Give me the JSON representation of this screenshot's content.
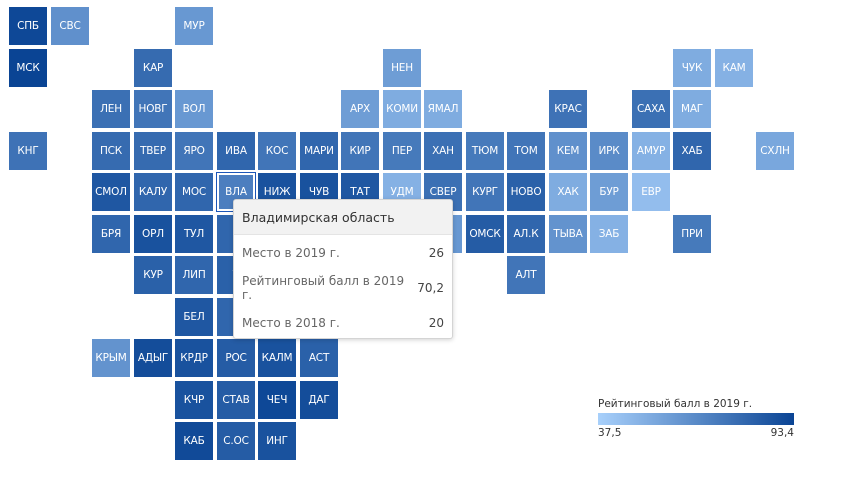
{
  "color_scale": {
    "min": 37.5,
    "max": 93.4,
    "min_color": "#a8d0fb",
    "max_color": "#0a4494"
  },
  "tiles": [
    {
      "label": "СПБ",
      "value": 92,
      "col": 0,
      "row": 0
    },
    {
      "label": "СВС",
      "value": 63,
      "col": 1,
      "row": 0
    },
    {
      "label": "МУР",
      "value": 60,
      "col": 4,
      "row": 0
    },
    {
      "label": "МСК",
      "value": 93.4,
      "col": 0,
      "row": 1
    },
    {
      "label": "КАР",
      "value": 78,
      "col": 3,
      "row": 1
    },
    {
      "label": "НЕН",
      "value": 58,
      "col": 9,
      "row": 1
    },
    {
      "label": "ЧУК",
      "value": 52,
      "col": 16,
      "row": 1
    },
    {
      "label": "КАМ",
      "value": 50,
      "col": 17,
      "row": 1
    },
    {
      "label": "ЛЕН",
      "value": 76,
      "col": 2,
      "row": 2
    },
    {
      "label": "НОВГ",
      "value": 74,
      "col": 3,
      "row": 2
    },
    {
      "label": "ВОЛ",
      "value": 60,
      "col": 4,
      "row": 2
    },
    {
      "label": "АРХ",
      "value": 58,
      "col": 8,
      "row": 2
    },
    {
      "label": "КОМИ",
      "value": 52,
      "col": 9,
      "row": 2
    },
    {
      "label": "ЯМАЛ",
      "value": 52,
      "col": 10,
      "row": 2
    },
    {
      "label": "КРАС",
      "value": 75,
      "col": 13,
      "row": 2
    },
    {
      "label": "САХА",
      "value": 76,
      "col": 15,
      "row": 2
    },
    {
      "label": "МАГ",
      "value": 52,
      "col": 16,
      "row": 2
    },
    {
      "label": "КНГ",
      "value": 75,
      "col": 0,
      "row": 3
    },
    {
      "label": "ПСК",
      "value": 78,
      "col": 2,
      "row": 3
    },
    {
      "label": "ТВЕР",
      "value": 78,
      "col": 3,
      "row": 3
    },
    {
      "label": "ЯРО",
      "value": 74,
      "col": 4,
      "row": 3
    },
    {
      "label": "ИВА",
      "value": 80,
      "col": 5,
      "row": 3
    },
    {
      "label": "КОС",
      "value": 74,
      "col": 6,
      "row": 3
    },
    {
      "label": "МАРИ",
      "value": 80,
      "col": 7,
      "row": 3
    },
    {
      "label": "КИР",
      "value": 74,
      "col": 8,
      "row": 3
    },
    {
      "label": "ПЕР",
      "value": 72,
      "col": 9,
      "row": 3
    },
    {
      "label": "ХАН",
      "value": 76,
      "col": 10,
      "row": 3
    },
    {
      "label": "ТЮМ",
      "value": 72,
      "col": 11,
      "row": 3
    },
    {
      "label": "ТОМ",
      "value": 74,
      "col": 12,
      "row": 3
    },
    {
      "label": "КЕМ",
      "value": 63,
      "col": 13,
      "row": 3
    },
    {
      "label": "ИРК",
      "value": 65,
      "col": 14,
      "row": 3
    },
    {
      "label": "АМУР",
      "value": 50,
      "col": 15,
      "row": 3
    },
    {
      "label": "ХАБ",
      "value": 80,
      "col": 16,
      "row": 3
    },
    {
      "label": "СХЛН",
      "value": 54,
      "col": 18,
      "row": 3
    },
    {
      "label": "СМОЛ",
      "value": 86,
      "col": 2,
      "row": 4
    },
    {
      "label": "КАЛУ",
      "value": 80,
      "col": 3,
      "row": 4
    },
    {
      "label": "МОС",
      "value": 80,
      "col": 4,
      "row": 4
    },
    {
      "label": "ВЛА",
      "value": 70.2,
      "col": 5,
      "row": 4
    },
    {
      "label": "НИЖ",
      "value": 88,
      "col": 6,
      "row": 4
    },
    {
      "label": "ЧУВ",
      "value": 88,
      "col": 7,
      "row": 4
    },
    {
      "label": "ТАТ",
      "value": 86,
      "col": 8,
      "row": 4
    },
    {
      "label": "УДМ",
      "value": 50,
      "col": 9,
      "row": 4
    },
    {
      "label": "СВЕР",
      "value": 76,
      "col": 10,
      "row": 4
    },
    {
      "label": "КУРГ",
      "value": 74,
      "col": 11,
      "row": 4
    },
    {
      "label": "НОВО",
      "value": 82,
      "col": 12,
      "row": 4
    },
    {
      "label": "ХАК",
      "value": 52,
      "col": 13,
      "row": 4
    },
    {
      "label": "БУР",
      "value": 58,
      "col": 14,
      "row": 4
    },
    {
      "label": "ЕВР",
      "value": 45,
      "col": 15,
      "row": 4
    },
    {
      "label": "БРЯ",
      "value": 80,
      "col": 2,
      "row": 5
    },
    {
      "label": "ОРЛ",
      "value": 88,
      "col": 3,
      "row": 5
    },
    {
      "label": "ТУЛ",
      "value": 86,
      "col": 4,
      "row": 5
    },
    {
      "label": "Р",
      "value": 80,
      "col": 5,
      "row": 5
    },
    {
      "label": "",
      "value": 60,
      "col": 10,
      "row": 5
    },
    {
      "label": "ОМСК",
      "value": 84,
      "col": 11,
      "row": 5
    },
    {
      "label": "АЛ.К",
      "value": 80,
      "col": 12,
      "row": 5
    },
    {
      "label": "ТЫВА",
      "value": 62,
      "col": 13,
      "row": 5
    },
    {
      "label": "ЗАБ",
      "value": 50,
      "col": 14,
      "row": 5
    },
    {
      "label": "ПРИ",
      "value": 72,
      "col": 16,
      "row": 5
    },
    {
      "label": "КУР",
      "value": 82,
      "col": 3,
      "row": 6
    },
    {
      "label": "ЛИП",
      "value": 80,
      "col": 4,
      "row": 6
    },
    {
      "label": "Т",
      "value": 82,
      "col": 5,
      "row": 6
    },
    {
      "label": "АЛТ",
      "value": 74,
      "col": 12,
      "row": 6
    },
    {
      "label": "БЕЛ",
      "value": 86,
      "col": 4,
      "row": 7
    },
    {
      "label": "В",
      "value": 80,
      "col": 5,
      "row": 7
    },
    {
      "label": "КРЫМ",
      "value": 62,
      "col": 2,
      "row": 8
    },
    {
      "label": "АДЫГ",
      "value": 90,
      "col": 3,
      "row": 8
    },
    {
      "label": "КРДР",
      "value": 88,
      "col": 4,
      "row": 8
    },
    {
      "label": "РОС",
      "value": 84,
      "col": 5,
      "row": 8
    },
    {
      "label": "КАЛМ",
      "value": 88,
      "col": 6,
      "row": 8
    },
    {
      "label": "АСТ",
      "value": 82,
      "col": 7,
      "row": 8
    },
    {
      "label": "КЧР",
      "value": 88,
      "col": 4,
      "row": 9
    },
    {
      "label": "СТАВ",
      "value": 84,
      "col": 5,
      "row": 9
    },
    {
      "label": "ЧЕЧ",
      "value": 92,
      "col": 6,
      "row": 9
    },
    {
      "label": "ДАГ",
      "value": 90,
      "col": 7,
      "row": 9
    },
    {
      "label": "КАБ",
      "value": 91,
      "col": 4,
      "row": 10
    },
    {
      "label": "С.ОС",
      "value": 84,
      "col": 5,
      "row": 10
    },
    {
      "label": "ИНГ",
      "value": 88,
      "col": 6,
      "row": 10
    }
  ],
  "tooltip": {
    "title": "Владимирская область",
    "rows": [
      {
        "label": "Место в 2019 г.",
        "value": "26"
      },
      {
        "label": "Рейтинговый балл в 2019 г.",
        "value": "70,2"
      },
      {
        "label": "Место в 2018 г.",
        "value": "20"
      }
    ]
  },
  "legend": {
    "title": "Рейтинговый балл в 2019 г.",
    "min_label": "37,5",
    "max_label": "93,4"
  }
}
